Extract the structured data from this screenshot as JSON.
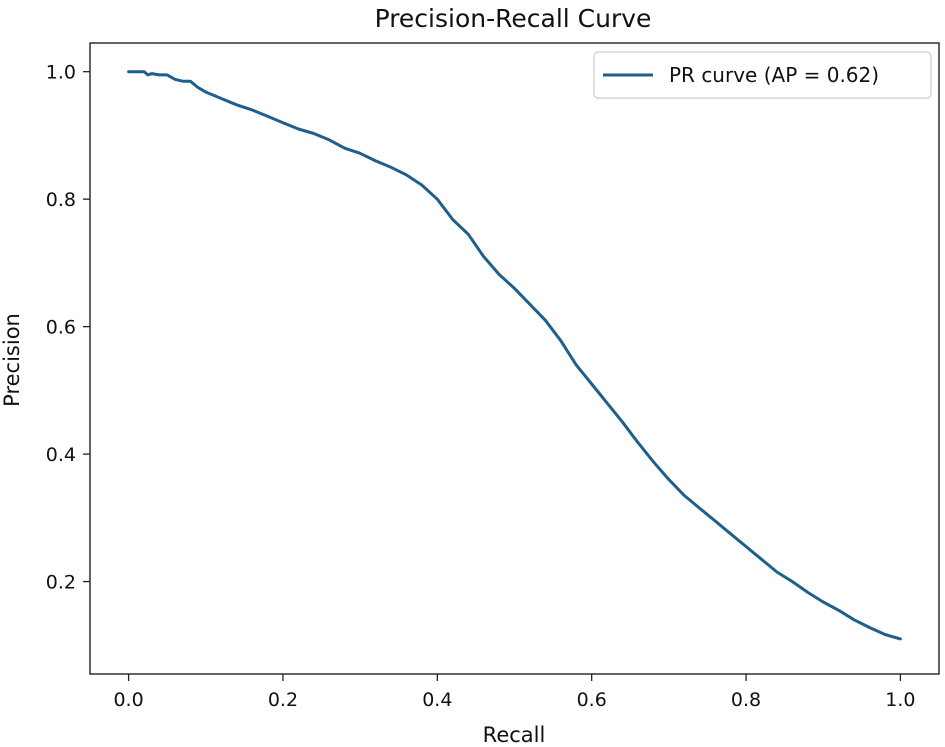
{
  "chart_data": {
    "type": "line",
    "title": "Precision-Recall Curve",
    "xlabel": "Recall",
    "ylabel": "Precision",
    "xlim": [
      -0.05,
      1.05
    ],
    "ylim": [
      0.055,
      1.045
    ],
    "xticks": [
      0.0,
      0.2,
      0.4,
      0.6,
      0.8,
      1.0
    ],
    "xtick_labels": [
      "0.0",
      "0.2",
      "0.4",
      "0.6",
      "0.8",
      "1.0"
    ],
    "yticks": [
      0.2,
      0.4,
      0.6,
      0.8,
      1.0
    ],
    "ytick_labels": [
      "0.2",
      "0.4",
      "0.6",
      "0.8",
      "1.0"
    ],
    "grid": false,
    "legend_position": "upper right",
    "color": "#1f5f8b",
    "series": [
      {
        "name": "PR curve (AP = 0.62)",
        "x": [
          0.0,
          0.01,
          0.02,
          0.025,
          0.03,
          0.04,
          0.05,
          0.06,
          0.07,
          0.08,
          0.09,
          0.1,
          0.11,
          0.12,
          0.14,
          0.16,
          0.18,
          0.2,
          0.22,
          0.24,
          0.26,
          0.28,
          0.3,
          0.32,
          0.34,
          0.36,
          0.38,
          0.4,
          0.42,
          0.44,
          0.46,
          0.48,
          0.5,
          0.52,
          0.54,
          0.56,
          0.58,
          0.6,
          0.62,
          0.64,
          0.66,
          0.68,
          0.7,
          0.72,
          0.74,
          0.76,
          0.78,
          0.8,
          0.82,
          0.84,
          0.86,
          0.88,
          0.9,
          0.92,
          0.94,
          0.96,
          0.98,
          1.0
        ],
        "y": [
          1.0,
          1.0,
          1.0,
          0.995,
          0.997,
          0.995,
          0.995,
          0.988,
          0.985,
          0.985,
          0.975,
          0.968,
          0.963,
          0.958,
          0.948,
          0.94,
          0.93,
          0.92,
          0.91,
          0.903,
          0.893,
          0.88,
          0.872,
          0.86,
          0.85,
          0.838,
          0.822,
          0.8,
          0.768,
          0.745,
          0.71,
          0.682,
          0.66,
          0.635,
          0.61,
          0.578,
          0.54,
          0.51,
          0.48,
          0.45,
          0.418,
          0.388,
          0.36,
          0.335,
          0.315,
          0.295,
          0.275,
          0.255,
          0.235,
          0.215,
          0.2,
          0.183,
          0.168,
          0.155,
          0.14,
          0.128,
          0.117,
          0.11
        ]
      }
    ]
  }
}
